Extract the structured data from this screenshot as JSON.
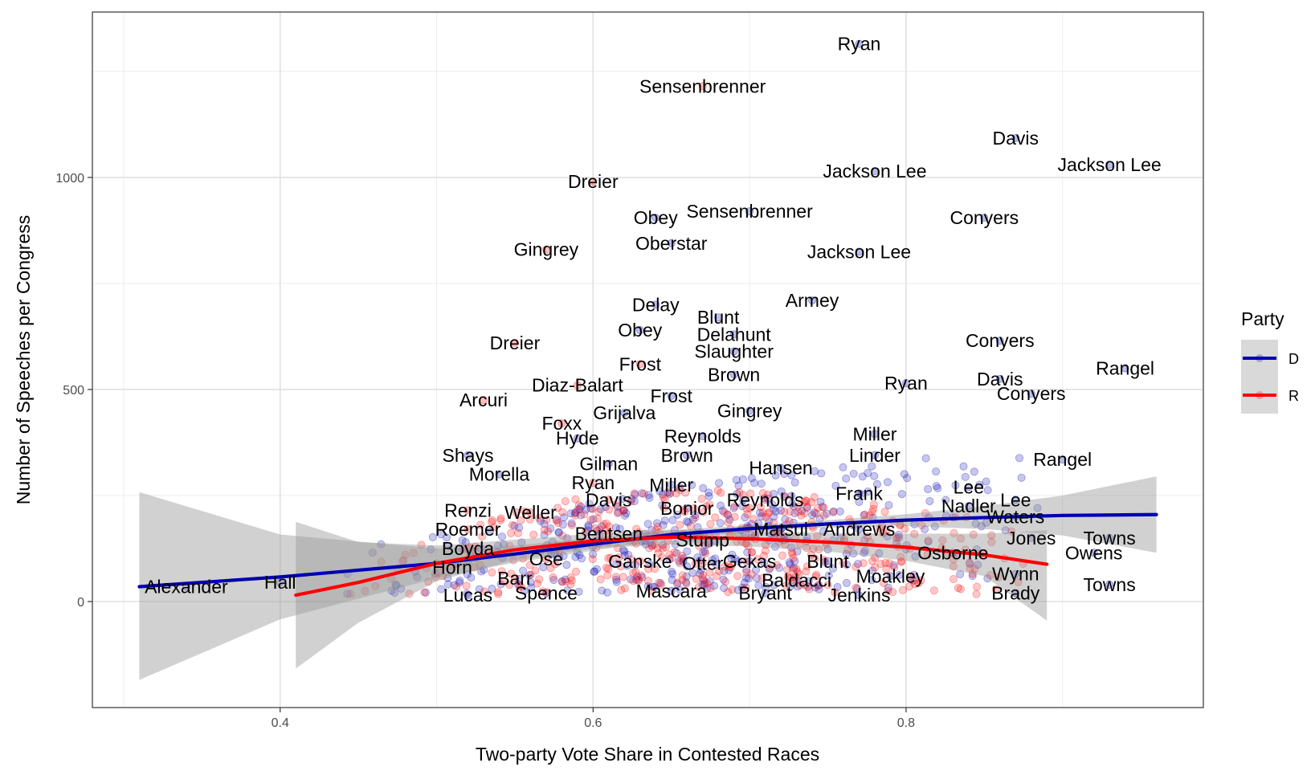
{
  "chart_data": {
    "type": "scatter",
    "title": "",
    "xlabel": "Two-party Vote Share in Contested Races",
    "ylabel": "Number of Speeches per Congress",
    "xlim": [
      0.28,
      0.99
    ],
    "ylim": [
      -250,
      1390
    ],
    "x_ticks": [
      0.4,
      0.6,
      0.8
    ],
    "x_tick_labels": [
      "0.4",
      "0.6",
      "0.8"
    ],
    "y_ticks": [
      0,
      500,
      1000
    ],
    "y_tick_labels": [
      "0",
      "500",
      "1000"
    ],
    "grid": true,
    "legend": {
      "title": "Party",
      "placement": "right",
      "entries": [
        {
          "label": "D",
          "color": "#0000b3"
        },
        {
          "label": "R",
          "color": "#ff0000"
        }
      ]
    },
    "colors": {
      "D": "#0000b3",
      "R": "#ff0000",
      "band": "#999999"
    },
    "series": [
      {
        "party": "D",
        "smooth": [
          [
            0.31,
            35
          ],
          [
            0.4,
            58
          ],
          [
            0.5,
            90
          ],
          [
            0.55,
            112
          ],
          [
            0.6,
            135
          ],
          [
            0.65,
            158
          ],
          [
            0.7,
            172
          ],
          [
            0.75,
            183
          ],
          [
            0.8,
            192
          ],
          [
            0.85,
            198
          ],
          [
            0.9,
            203
          ],
          [
            0.96,
            205
          ]
        ],
        "band_upper": [
          [
            0.31,
            258
          ],
          [
            0.4,
            158
          ],
          [
            0.5,
            125
          ],
          [
            0.55,
            132
          ],
          [
            0.6,
            150
          ],
          [
            0.65,
            168
          ],
          [
            0.7,
            180
          ],
          [
            0.75,
            192
          ],
          [
            0.8,
            206
          ],
          [
            0.85,
            225
          ],
          [
            0.9,
            250
          ],
          [
            0.96,
            295
          ]
        ],
        "band_lower": [
          [
            0.31,
            -185
          ],
          [
            0.4,
            -42
          ],
          [
            0.5,
            55
          ],
          [
            0.55,
            92
          ],
          [
            0.6,
            120
          ],
          [
            0.65,
            148
          ],
          [
            0.7,
            164
          ],
          [
            0.75,
            174
          ],
          [
            0.8,
            178
          ],
          [
            0.85,
            171
          ],
          [
            0.9,
            156
          ],
          [
            0.96,
            115
          ]
        ],
        "labels": [
          {
            "text": "Ryan",
            "x": 0.77,
            "y": 1315
          },
          {
            "text": "Davis",
            "x": 0.87,
            "y": 1093
          },
          {
            "text": "Jackson Lee",
            "x": 0.78,
            "y": 1015
          },
          {
            "text": "Jackson Lee",
            "x": 0.93,
            "y": 1030
          },
          {
            "text": "Sensenbrenner",
            "x": 0.7,
            "y": 920
          },
          {
            "text": "Conyers",
            "x": 0.85,
            "y": 905
          },
          {
            "text": "Obey",
            "x": 0.64,
            "y": 905
          },
          {
            "text": "Oberstar",
            "x": 0.65,
            "y": 845
          },
          {
            "text": "Jackson Lee",
            "x": 0.77,
            "y": 825
          },
          {
            "text": "Armey",
            "x": 0.74,
            "y": 710
          },
          {
            "text": "Delay",
            "x": 0.64,
            "y": 700
          },
          {
            "text": "Blunt",
            "x": 0.68,
            "y": 670
          },
          {
            "text": "Obey",
            "x": 0.63,
            "y": 640
          },
          {
            "text": "Delahunt",
            "x": 0.69,
            "y": 630
          },
          {
            "text": "Conyers",
            "x": 0.86,
            "y": 615
          },
          {
            "text": "Slaughter",
            "x": 0.69,
            "y": 590
          },
          {
            "text": "Rangel",
            "x": 0.94,
            "y": 550
          },
          {
            "text": "Brown",
            "x": 0.69,
            "y": 535
          },
          {
            "text": "Davis",
            "x": 0.86,
            "y": 525
          },
          {
            "text": "Ryan",
            "x": 0.8,
            "y": 515
          },
          {
            "text": "Conyers",
            "x": 0.88,
            "y": 490
          },
          {
            "text": "Frost",
            "x": 0.65,
            "y": 485
          },
          {
            "text": "Gingrey",
            "x": 0.7,
            "y": 450
          },
          {
            "text": "Grijalva",
            "x": 0.62,
            "y": 445
          },
          {
            "text": "Reynolds",
            "x": 0.67,
            "y": 390
          },
          {
            "text": "Hyde",
            "x": 0.59,
            "y": 385
          },
          {
            "text": "Miller",
            "x": 0.78,
            "y": 395
          },
          {
            "text": "Brown",
            "x": 0.66,
            "y": 345
          },
          {
            "text": "Linder",
            "x": 0.78,
            "y": 345
          },
          {
            "text": "Shays",
            "x": 0.52,
            "y": 345
          },
          {
            "text": "Rangel",
            "x": 0.9,
            "y": 335
          },
          {
            "text": "Gilman",
            "x": 0.61,
            "y": 325
          },
          {
            "text": "Hansen",
            "x": 0.72,
            "y": 315
          },
          {
            "text": "Morella",
            "x": 0.54,
            "y": 300
          },
          {
            "text": "Lee",
            "x": 0.84,
            "y": 270
          },
          {
            "text": "Miller",
            "x": 0.65,
            "y": 275
          },
          {
            "text": "Frank",
            "x": 0.77,
            "y": 255
          },
          {
            "text": "Lee",
            "x": 0.87,
            "y": 240
          },
          {
            "text": "Nadler",
            "x": 0.84,
            "y": 225
          },
          {
            "text": "Waters",
            "x": 0.87,
            "y": 200
          },
          {
            "text": "Bonior",
            "x": 0.66,
            "y": 220
          },
          {
            "text": "Jones",
            "x": 0.88,
            "y": 150
          },
          {
            "text": "Towns",
            "x": 0.93,
            "y": 150
          },
          {
            "text": "Andrews",
            "x": 0.77,
            "y": 170
          },
          {
            "text": "Matsui",
            "x": 0.72,
            "y": 170
          },
          {
            "text": "Owens",
            "x": 0.92,
            "y": 115
          },
          {
            "text": "Osborne",
            "x": 0.83,
            "y": 115
          },
          {
            "text": "Gekas",
            "x": 0.7,
            "y": 95
          },
          {
            "text": "Blunt",
            "x": 0.75,
            "y": 95
          },
          {
            "text": "Hall",
            "x": 0.4,
            "y": 45
          },
          {
            "text": "Moakley",
            "x": 0.79,
            "y": 60
          },
          {
            "text": "Wynn",
            "x": 0.87,
            "y": 65
          },
          {
            "text": "Towns",
            "x": 0.93,
            "y": 40
          },
          {
            "text": "Baldacci",
            "x": 0.73,
            "y": 50
          },
          {
            "text": "Alexander",
            "x": 0.34,
            "y": 35
          },
          {
            "text": "Brady",
            "x": 0.87,
            "y": 20
          },
          {
            "text": "Jenkins",
            "x": 0.77,
            "y": 15
          },
          {
            "text": "Bryant",
            "x": 0.71,
            "y": 20
          },
          {
            "text": "Mascara",
            "x": 0.65,
            "y": 25
          },
          {
            "text": "Spence",
            "x": 0.57,
            "y": 20
          },
          {
            "text": "Lucas",
            "x": 0.52,
            "y": 15
          }
        ]
      },
      {
        "party": "R",
        "smooth": [
          [
            0.41,
            15
          ],
          [
            0.45,
            45
          ],
          [
            0.5,
            90
          ],
          [
            0.55,
            122
          ],
          [
            0.6,
            143
          ],
          [
            0.65,
            152
          ],
          [
            0.7,
            148
          ],
          [
            0.75,
            140
          ],
          [
            0.8,
            128
          ],
          [
            0.85,
            110
          ],
          [
            0.89,
            88
          ]
        ],
        "band_upper": [
          [
            0.41,
            188
          ],
          [
            0.45,
            140
          ],
          [
            0.5,
            132
          ],
          [
            0.55,
            146
          ],
          [
            0.6,
            160
          ],
          [
            0.65,
            170
          ],
          [
            0.7,
            166
          ],
          [
            0.75,
            162
          ],
          [
            0.8,
            160
          ],
          [
            0.85,
            160
          ],
          [
            0.89,
            168
          ]
        ],
        "band_lower": [
          [
            0.41,
            -158
          ],
          [
            0.45,
            -50
          ],
          [
            0.5,
            48
          ],
          [
            0.55,
            98
          ],
          [
            0.6,
            126
          ],
          [
            0.65,
            134
          ],
          [
            0.7,
            130
          ],
          [
            0.75,
            118
          ],
          [
            0.8,
            96
          ],
          [
            0.85,
            60
          ],
          [
            0.89,
            -45
          ]
        ],
        "labels": [
          {
            "text": "Sensenbrenner",
            "x": 0.67,
            "y": 1215
          },
          {
            "text": "Dreier",
            "x": 0.6,
            "y": 990
          },
          {
            "text": "Gingrey",
            "x": 0.57,
            "y": 830
          },
          {
            "text": "Dreier",
            "x": 0.55,
            "y": 610
          },
          {
            "text": "Frost",
            "x": 0.63,
            "y": 560
          },
          {
            "text": "Diaz-Balart",
            "x": 0.59,
            "y": 510
          },
          {
            "text": "Arcuri",
            "x": 0.53,
            "y": 475
          },
          {
            "text": "Foxx",
            "x": 0.58,
            "y": 420
          },
          {
            "text": "Ryan",
            "x": 0.6,
            "y": 280
          },
          {
            "text": "Davis",
            "x": 0.61,
            "y": 240
          },
          {
            "text": "Reynolds",
            "x": 0.71,
            "y": 240
          },
          {
            "text": "Weller",
            "x": 0.56,
            "y": 210
          },
          {
            "text": "Renzi",
            "x": 0.52,
            "y": 215
          },
          {
            "text": "Roemer",
            "x": 0.52,
            "y": 170
          },
          {
            "text": "Bentsen",
            "x": 0.61,
            "y": 160
          },
          {
            "text": "Stump",
            "x": 0.67,
            "y": 145
          },
          {
            "text": "Boyda",
            "x": 0.52,
            "y": 125
          },
          {
            "text": "Ose",
            "x": 0.57,
            "y": 100
          },
          {
            "text": "Ganske",
            "x": 0.63,
            "y": 95
          },
          {
            "text": "Otter",
            "x": 0.67,
            "y": 90
          },
          {
            "text": "Horn",
            "x": 0.51,
            "y": 80
          },
          {
            "text": "Barr",
            "x": 0.55,
            "y": 55
          }
        ]
      }
    ]
  }
}
